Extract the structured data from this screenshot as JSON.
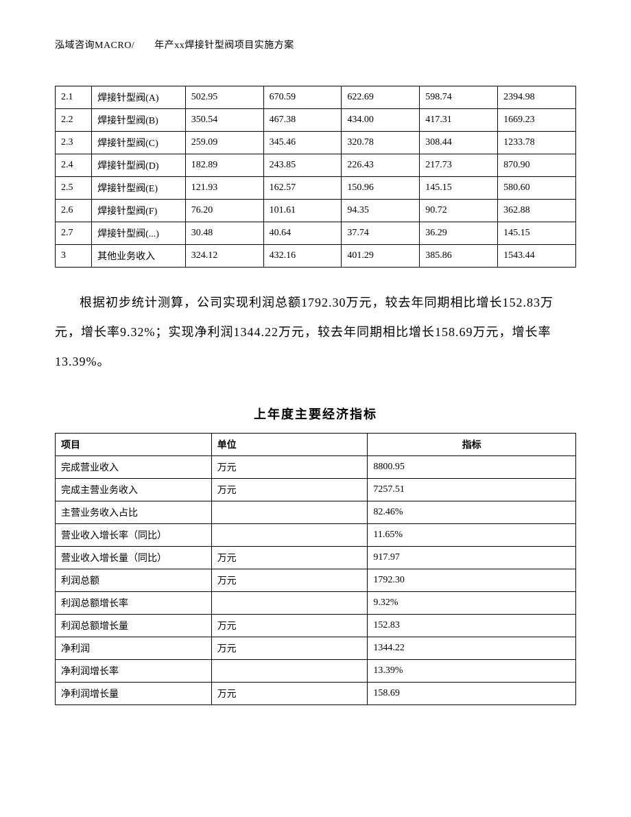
{
  "header": {
    "text": "泓域咨询MACRO/　　年产xx焊接针型阀项目实施方案"
  },
  "table1": {
    "rows": [
      [
        "2.1",
        "焊接针型阀(A)",
        "502.95",
        "670.59",
        "622.69",
        "598.74",
        "2394.98"
      ],
      [
        "2.2",
        "焊接针型阀(B)",
        "350.54",
        "467.38",
        "434.00",
        "417.31",
        "1669.23"
      ],
      [
        "2.3",
        "焊接针型阀(C)",
        "259.09",
        "345.46",
        "320.78",
        "308.44",
        "1233.78"
      ],
      [
        "2.4",
        "焊接针型阀(D)",
        "182.89",
        "243.85",
        "226.43",
        "217.73",
        "870.90"
      ],
      [
        "2.5",
        "焊接针型阀(E)",
        "121.93",
        "162.57",
        "150.96",
        "145.15",
        "580.60"
      ],
      [
        "2.6",
        "焊接针型阀(F)",
        "76.20",
        "101.61",
        "94.35",
        "90.72",
        "362.88"
      ],
      [
        "2.7",
        "焊接针型阀(...)",
        "30.48",
        "40.64",
        "37.74",
        "36.29",
        "145.15"
      ],
      [
        "3",
        "其他业务收入",
        "324.12",
        "432.16",
        "401.29",
        "385.86",
        "1543.44"
      ]
    ]
  },
  "paragraph": {
    "text": "根据初步统计测算，公司实现利润总额1792.30万元，较去年同期相比增长152.83万元，增长率9.32%；实现净利润1344.22万元，较去年同期相比增长158.69万元，增长率13.39%。"
  },
  "section_title": "上年度主要经济指标",
  "table2": {
    "headers": [
      "项目",
      "单位",
      "指标"
    ],
    "rows": [
      [
        "完成营业收入",
        "万元",
        "8800.95"
      ],
      [
        "完成主营业务收入",
        "万元",
        "7257.51"
      ],
      [
        "主营业务收入占比",
        "",
        "82.46%"
      ],
      [
        "营业收入增长率（同比）",
        "",
        "11.65%"
      ],
      [
        "营业收入增长量（同比）",
        "万元",
        "917.97"
      ],
      [
        "利润总额",
        "万元",
        "1792.30"
      ],
      [
        "利润总额增长率",
        "",
        "9.32%"
      ],
      [
        "利润总额增长量",
        "万元",
        "152.83"
      ],
      [
        "净利润",
        "万元",
        "1344.22"
      ],
      [
        "净利润增长率",
        "",
        "13.39%"
      ],
      [
        "净利润增长量",
        "万元",
        "158.69"
      ]
    ]
  }
}
